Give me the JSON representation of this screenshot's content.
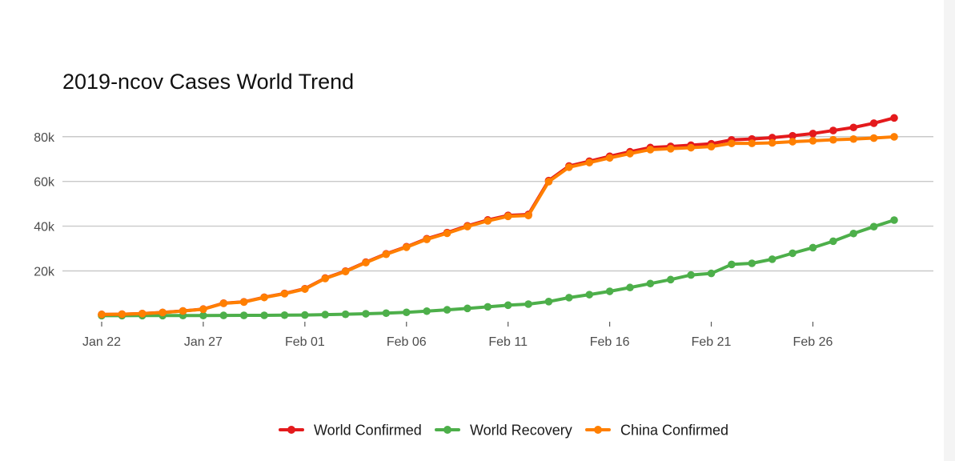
{
  "chart_data": {
    "type": "line",
    "title": "2019-ncov Cases World Trend",
    "xlabel": "",
    "ylabel": "",
    "x_start": "2020-01-22",
    "x_end": "2020-03-01",
    "x_ticks": [
      {
        "date": "2020-01-22",
        "label": "Jan 22"
      },
      {
        "date": "2020-01-27",
        "label": "Jan 27"
      },
      {
        "date": "2020-02-01",
        "label": "Feb 01"
      },
      {
        "date": "2020-02-06",
        "label": "Feb 06"
      },
      {
        "date": "2020-02-11",
        "label": "Feb 11"
      },
      {
        "date": "2020-02-16",
        "label": "Feb 16"
      },
      {
        "date": "2020-02-21",
        "label": "Feb 21"
      },
      {
        "date": "2020-02-26",
        "label": "Feb 26"
      }
    ],
    "y_ticks": [
      {
        "value": 20000,
        "label": "20k"
      },
      {
        "value": 40000,
        "label": "40k"
      },
      {
        "value": 60000,
        "label": "60k"
      },
      {
        "value": 80000,
        "label": "80k"
      }
    ],
    "ylim": [
      -2000,
      91000
    ],
    "grid": "horizontal",
    "legend_position": "bottom",
    "series": [
      {
        "name": "World Confirmed",
        "color": "#e41a1c",
        "values": [
          555,
          654,
          941,
          1434,
          2118,
          2927,
          5578,
          6166,
          8234,
          9927,
          12038,
          16787,
          19881,
          23892,
          27635,
          30794,
          34391,
          37120,
          40150,
          42762,
          44802,
          45221,
          60368,
          66885,
          69030,
          71224,
          73258,
          75136,
          75639,
          76197,
          76819,
          78572,
          78958,
          79561,
          80406,
          81388,
          82746,
          84112,
          86011,
          88369
        ]
      },
      {
        "name": "World Recovery",
        "color": "#4daf4a",
        "values": [
          28,
          30,
          36,
          39,
          52,
          61,
          107,
          126,
          143,
          222,
          284,
          472,
          623,
          852,
          1124,
          1487,
          2011,
          2616,
          3244,
          3946,
          4683,
          5150,
          6295,
          8058,
          9395,
          10865,
          12583,
          14352,
          16121,
          18177,
          18890,
          22886,
          23394,
          25227,
          27905,
          30384,
          33277,
          36711,
          39782,
          42716
        ]
      },
      {
        "name": "China Confirmed",
        "color": "#ff7f00",
        "values": [
          548,
          643,
          920,
          1406,
          2075,
          2877,
          5509,
          6087,
          8141,
          9802,
          11891,
          16630,
          19716,
          23707,
          27440,
          30587,
          34110,
          36814,
          39829,
          42354,
          44386,
          44759,
          59895,
          66358,
          68413,
          70513,
          72434,
          74211,
          74619,
          75077,
          75550,
          77001,
          77022,
          77241,
          77754,
          78166,
          78600,
          78928,
          79356,
          79932
        ]
      }
    ]
  }
}
